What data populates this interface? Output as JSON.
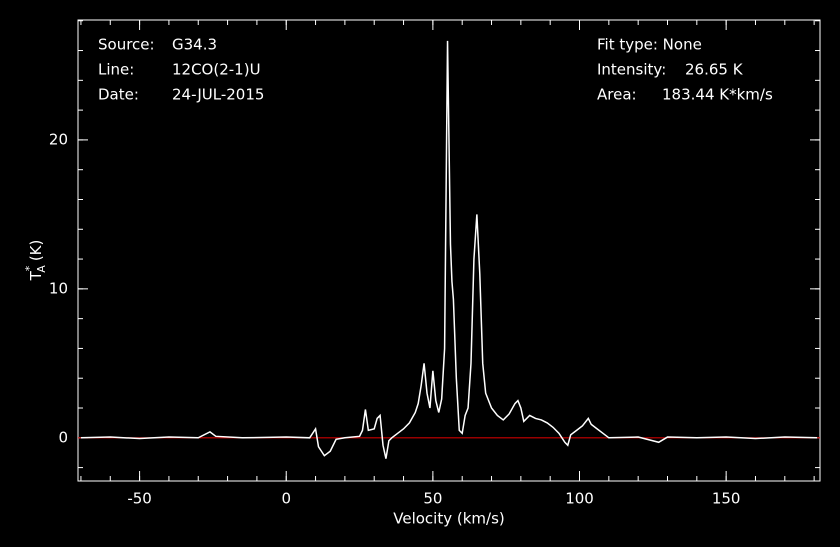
{
  "chart_data": {
    "type": "line",
    "header_left": [
      [
        "Source:",
        "G34.3"
      ],
      [
        "Line:",
        "12CO(2-1)U"
      ],
      [
        "Date:",
        "24-JUL-2015"
      ]
    ],
    "header_right": [
      [
        "Fit type: None",
        ""
      ],
      [
        "Intensity:",
        "26.65 K"
      ],
      [
        "Area:",
        "183.44 K*km/s"
      ]
    ],
    "xlabel": "Velocity (km/s)",
    "ylabel": {
      "main": "T",
      "sup": "*",
      "sub": "A",
      "unit": "(K)"
    },
    "x": [
      -70,
      -60,
      -50,
      -40,
      -30,
      -26,
      -24,
      -15,
      0,
      8,
      10,
      11,
      13,
      15,
      17,
      20,
      25,
      26,
      27,
      28,
      30,
      31,
      32,
      33,
      34,
      35,
      36,
      38,
      40,
      42,
      44,
      45,
      46,
      47,
      48,
      49,
      50,
      51,
      52,
      53,
      54,
      55,
      56,
      56.5,
      57,
      58,
      59,
      60,
      61,
      62,
      63,
      64,
      65,
      66,
      67,
      68,
      70,
      72,
      74,
      76,
      78,
      79,
      80,
      81,
      83,
      85,
      87,
      89,
      91,
      93,
      95,
      96,
      97,
      99,
      101,
      103,
      104,
      106,
      108,
      110,
      120,
      127,
      130,
      140,
      150,
      160,
      170,
      181
    ],
    "series": [
      {
        "color": "#ffffff",
        "values": [
          0.0,
          0.05,
          -0.05,
          0.05,
          0.0,
          0.4,
          0.1,
          0.0,
          0.05,
          0.0,
          0.6,
          -0.6,
          -1.2,
          -0.9,
          -0.1,
          0.0,
          0.1,
          0.5,
          1.9,
          0.5,
          0.6,
          1.3,
          1.5,
          -0.5,
          -1.4,
          -0.2,
          0.0,
          0.3,
          0.6,
          1.0,
          1.7,
          2.3,
          3.5,
          5.0,
          3.0,
          2.0,
          4.5,
          2.5,
          1.7,
          2.6,
          6.0,
          26.65,
          13.0,
          10.5,
          9.3,
          4.0,
          0.5,
          0.3,
          1.5,
          2.0,
          5.0,
          12.0,
          15.0,
          11.0,
          5.0,
          3.0,
          2.0,
          1.5,
          1.2,
          1.6,
          2.3,
          2.5,
          2.0,
          1.1,
          1.5,
          1.3,
          1.2,
          1.0,
          0.7,
          0.3,
          -0.3,
          -0.5,
          0.2,
          0.5,
          0.8,
          1.3,
          0.9,
          0.6,
          0.3,
          0.0,
          0.05,
          -0.3,
          0.05,
          0.0,
          0.05,
          -0.05,
          0.05,
          0.0
        ]
      }
    ],
    "baseline": 0,
    "baseline_color": "#cc0000",
    "xlim": [
      -71,
      182
    ],
    "ylim": [
      -2.9,
      28.05
    ],
    "xticks": [
      -50,
      0,
      50,
      100,
      150
    ],
    "yticks": [
      0,
      10,
      20
    ],
    "xminor_step": 10,
    "yminor_step": 2
  }
}
